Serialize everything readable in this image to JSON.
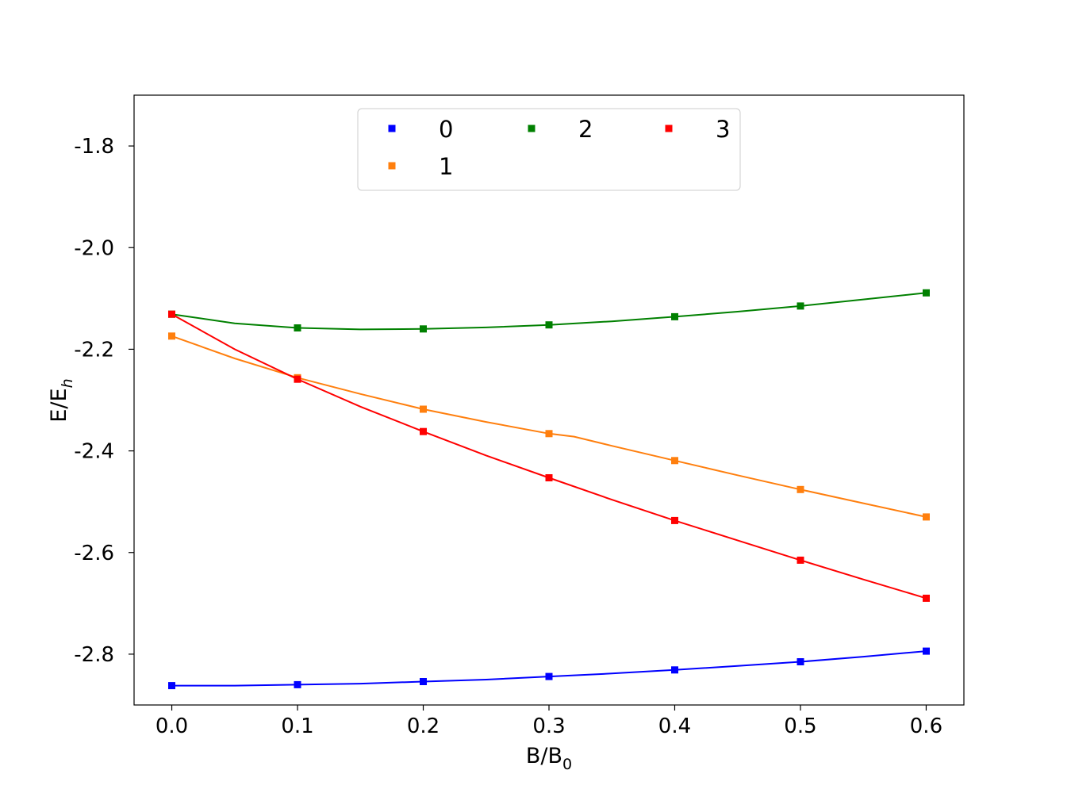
{
  "chart_data": {
    "type": "line",
    "xlabel": "B/B",
    "xlabel_sub": "0",
    "ylabel": "E/E",
    "ylabel_sub": "h",
    "xlim": [
      -0.03,
      0.63
    ],
    "ylim": [
      -2.9,
      -1.7
    ],
    "xticks": [
      0.0,
      0.1,
      0.2,
      0.3,
      0.4,
      0.5,
      0.6
    ],
    "xtick_labels": [
      "0.0",
      "0.1",
      "0.2",
      "0.3",
      "0.4",
      "0.5",
      "0.6"
    ],
    "yticks": [
      -1.8,
      -2.0,
      -2.2,
      -2.4,
      -2.6,
      -2.8
    ],
    "ytick_labels": [
      "-1.8",
      "-2.0",
      "-2.2",
      "-2.4",
      "-2.6",
      "-2.8"
    ],
    "grid": false,
    "legend": {
      "placement": "upper-center",
      "columns": 3
    },
    "x": [
      0.0,
      0.1,
      0.2,
      0.3,
      0.4,
      0.5,
      0.6
    ],
    "series": [
      {
        "name": "0",
        "color": "#0000ff",
        "values": [
          -2.862,
          -2.86,
          -2.854,
          -2.844,
          -2.831,
          -2.815,
          -2.794
        ],
        "curve": [
          [
            0.0,
            -2.862
          ],
          [
            0.05,
            -2.862
          ],
          [
            0.1,
            -2.86
          ],
          [
            0.15,
            -2.858
          ],
          [
            0.2,
            -2.854
          ],
          [
            0.25,
            -2.85
          ],
          [
            0.3,
            -2.844
          ],
          [
            0.35,
            -2.838
          ],
          [
            0.4,
            -2.831
          ],
          [
            0.45,
            -2.823
          ],
          [
            0.5,
            -2.815
          ],
          [
            0.55,
            -2.805
          ],
          [
            0.6,
            -2.794
          ]
        ]
      },
      {
        "name": "1",
        "color": "#ff7f0e",
        "values": [
          -2.174,
          -2.256,
          -2.318,
          -2.366,
          -2.419,
          -2.476,
          -2.53
        ],
        "curve": [
          [
            0.0,
            -2.174
          ],
          [
            0.05,
            -2.218
          ],
          [
            0.1,
            -2.256
          ],
          [
            0.15,
            -2.288
          ],
          [
            0.2,
            -2.318
          ],
          [
            0.25,
            -2.343
          ],
          [
            0.3,
            -2.366
          ],
          [
            0.32,
            -2.372
          ],
          [
            0.35,
            -2.39
          ],
          [
            0.4,
            -2.419
          ],
          [
            0.45,
            -2.448
          ],
          [
            0.5,
            -2.476
          ],
          [
            0.55,
            -2.503
          ],
          [
            0.6,
            -2.53
          ]
        ]
      },
      {
        "name": "2",
        "color": "#008000",
        "values": [
          -2.131,
          -2.158,
          -2.16,
          -2.152,
          -2.136,
          -2.115,
          -2.089
        ],
        "curve": [
          [
            0.0,
            -2.131
          ],
          [
            0.05,
            -2.149
          ],
          [
            0.1,
            -2.158
          ],
          [
            0.15,
            -2.161
          ],
          [
            0.2,
            -2.16
          ],
          [
            0.25,
            -2.157
          ],
          [
            0.3,
            -2.152
          ],
          [
            0.35,
            -2.145
          ],
          [
            0.4,
            -2.136
          ],
          [
            0.45,
            -2.126
          ],
          [
            0.5,
            -2.115
          ],
          [
            0.55,
            -2.102
          ],
          [
            0.6,
            -2.089
          ]
        ]
      },
      {
        "name": "3",
        "color": "#ff0000",
        "values": [
          -2.131,
          -2.259,
          -2.362,
          -2.453,
          -2.537,
          -2.615,
          -2.69
        ],
        "curve": [
          [
            0.0,
            -2.131
          ],
          [
            0.05,
            -2.2
          ],
          [
            0.1,
            -2.259
          ],
          [
            0.15,
            -2.313
          ],
          [
            0.2,
            -2.362
          ],
          [
            0.25,
            -2.409
          ],
          [
            0.3,
            -2.453
          ],
          [
            0.35,
            -2.496
          ],
          [
            0.4,
            -2.537
          ],
          [
            0.45,
            -2.576
          ],
          [
            0.5,
            -2.615
          ],
          [
            0.55,
            -2.653
          ],
          [
            0.6,
            -2.69
          ]
        ]
      }
    ]
  }
}
